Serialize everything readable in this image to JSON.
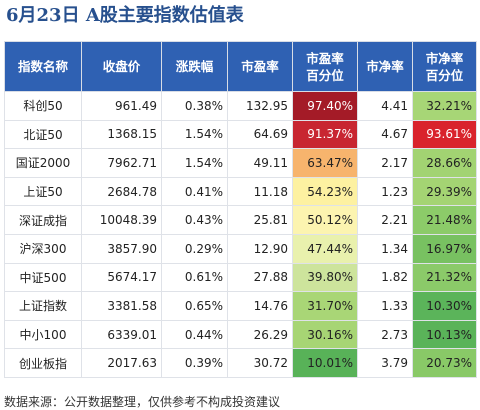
{
  "title": "6月23日  A股主要指数估值表",
  "headers": {
    "name": "指数名称",
    "close": "收盘价",
    "change": "涨跌幅",
    "pe": "市盈率",
    "pe_pct_1": "市盈率",
    "pe_pct_2": "百分位",
    "pb": "市净率",
    "pb_pct_1": "市净率",
    "pb_pct_2": "百分位"
  },
  "rows": [
    {
      "name": "科创50",
      "close": "961.49",
      "change": "0.38%",
      "pe": "132.95",
      "pe_pct": "97.40%",
      "pb": "4.41",
      "pb_pct": "32.21%",
      "pe_color": "#a41b27",
      "pb_color": "#a7d676"
    },
    {
      "name": "北证50",
      "close": "1368.15",
      "change": "1.54%",
      "pe": "64.69",
      "pe_pct": "91.37%",
      "pb": "4.67",
      "pb_pct": "93.61%",
      "pe_color": "#c82631",
      "pb_color": "#d9232c"
    },
    {
      "name": "国证2000",
      "close": "7962.71",
      "change": "1.54%",
      "pe": "49.11",
      "pe_pct": "63.47%",
      "pb": "2.17",
      "pb_pct": "28.66%",
      "pe_color": "#f7b46d",
      "pb_color": "#a2d372"
    },
    {
      "name": "上证50",
      "close": "2684.78",
      "change": "0.41%",
      "pe": "11.18",
      "pe_pct": "54.23%",
      "pb": "1.23",
      "pb_pct": "29.39%",
      "pe_color": "#fdf1a1",
      "pb_color": "#a4d473"
    },
    {
      "name": "深证成指",
      "close": "10048.39",
      "change": "0.43%",
      "pe": "25.81",
      "pe_pct": "50.12%",
      "pb": "2.21",
      "pb_pct": "21.48%",
      "pe_color": "#fcf4b0",
      "pb_color": "#8ccb69"
    },
    {
      "name": "沪深300",
      "close": "3857.90",
      "change": "0.29%",
      "pe": "12.90",
      "pe_pct": "47.44%",
      "pb": "1.34",
      "pb_pct": "16.97%",
      "pe_color": "#e9f1ad",
      "pb_color": "#78c161"
    },
    {
      "name": "中证500",
      "close": "5674.17",
      "change": "0.61%",
      "pe": "27.88",
      "pe_pct": "39.80%",
      "pb": "1.82",
      "pb_pct": "21.32%",
      "pe_color": "#cde49c",
      "pb_color": "#8bca69"
    },
    {
      "name": "上证指数",
      "close": "3381.58",
      "change": "0.65%",
      "pe": "14.76",
      "pe_pct": "31.70%",
      "pb": "1.33",
      "pb_pct": "10.30%",
      "pe_color": "#a9d676",
      "pb_color": "#5bb45a"
    },
    {
      "name": "中小100",
      "close": "6339.01",
      "change": "0.44%",
      "pe": "26.29",
      "pe_pct": "30.16%",
      "pb": "2.73",
      "pb_pct": "10.13%",
      "pe_color": "#a7d574",
      "pb_color": "#5ab359"
    },
    {
      "name": "创业板指",
      "close": "2017.63",
      "change": "0.39%",
      "pe": "30.72",
      "pe_pct": "10.01%",
      "pb": "3.79",
      "pb_pct": "20.73%",
      "pe_color": "#58b258",
      "pb_color": "#89c967"
    }
  ],
  "footer": "数据来源：公开数据整理，仅供参考不构成投资建议"
}
